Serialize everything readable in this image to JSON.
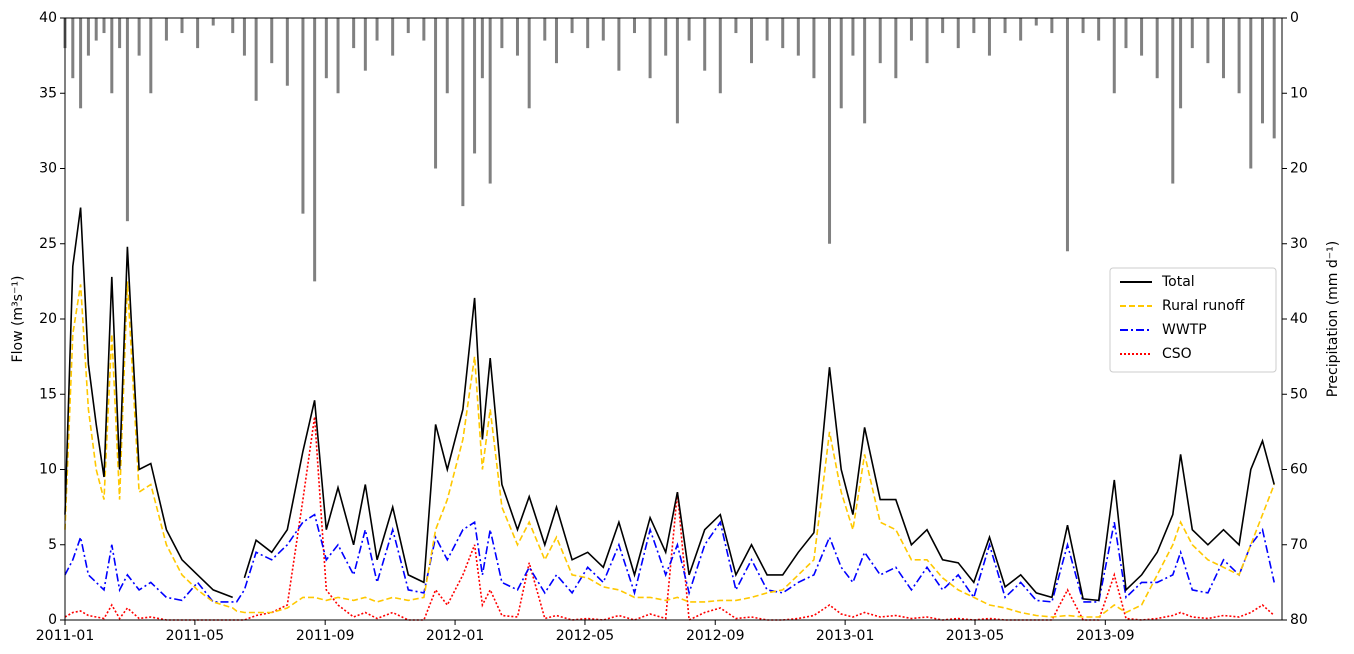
{
  "chart_data": {
    "type": "line",
    "ylabel": "Flow (m³s⁻¹)",
    "y2label": "Precipitation (mm d⁻¹)",
    "x": [
      2011.0,
      2011.02,
      2011.04,
      2011.06,
      2011.08,
      2011.1,
      2011.12,
      2011.14,
      2011.16,
      2011.19,
      2011.22,
      2011.26,
      2011.3,
      2011.34,
      2011.38,
      2011.43,
      2011.44,
      2011.46,
      2011.49,
      2011.53,
      2011.57,
      2011.61,
      2011.64,
      2011.67,
      2011.7,
      2011.74,
      2011.77,
      2011.8,
      2011.84,
      2011.88,
      2011.92,
      2011.95,
      2011.98,
      2012.02,
      2012.05,
      2012.07,
      2012.09,
      2012.12,
      2012.16,
      2012.19,
      2012.23,
      2012.26,
      2012.3,
      2012.34,
      2012.38,
      2012.42,
      2012.46,
      2012.5,
      2012.54,
      2012.57,
      2012.6,
      2012.64,
      2012.68,
      2012.72,
      2012.76,
      2012.8,
      2012.84,
      2012.88,
      2012.92,
      2012.96,
      2012.99,
      2013.02,
      2013.05,
      2013.09,
      2013.13,
      2013.17,
      2013.21,
      2013.25,
      2013.29,
      2013.33,
      2013.37,
      2013.41,
      2013.45,
      2013.49,
      2013.53,
      2013.57,
      2013.61,
      2013.65,
      2013.69,
      2013.72,
      2013.76,
      2013.8,
      2013.84,
      2013.86,
      2013.89,
      2013.93,
      2013.97,
      2014.01,
      2014.04,
      2014.07,
      2014.1
    ],
    "series": [
      {
        "name": "Total",
        "color": "#000000",
        "linestyle": "solid",
        "values": [
          7,
          23.5,
          27.4,
          17,
          13,
          9.5,
          22.8,
          10,
          24.8,
          10,
          10.4,
          6,
          4,
          3,
          2,
          1.5,
          null,
          2.8,
          5.3,
          4.5,
          6,
          11.2,
          14.6,
          6,
          8.8,
          5,
          9,
          4,
          7.5,
          3,
          2.5,
          13,
          10,
          14,
          21.4,
          12,
          17.4,
          9,
          6,
          8.2,
          5,
          7.5,
          4,
          4.5,
          3.5,
          6.5,
          3,
          6.8,
          4.5,
          8.5,
          3,
          6,
          7,
          3,
          5,
          3,
          3,
          4.5,
          5.8,
          16.8,
          10,
          7,
          12.8,
          8,
          8,
          5,
          6,
          4,
          3.8,
          2.5,
          5.5,
          2.2,
          3,
          1.8,
          1.5,
          6.3,
          1.4,
          1.3,
          9.3,
          2,
          3,
          4.5,
          7,
          11,
          6,
          5,
          6,
          5,
          10,
          11.9,
          9
        ]
      },
      {
        "name": "Rural runoff",
        "color": "#ffc800",
        "linestyle": "dashed",
        "values": [
          6,
          19,
          22.3,
          14,
          10,
          8,
          19,
          8,
          22.5,
          8.5,
          9,
          5,
          3,
          2,
          1.2,
          0.8,
          0.6,
          0.5,
          0.5,
          0.5,
          0.8,
          1.5,
          1.5,
          1.3,
          1.5,
          1.3,
          1.5,
          1.2,
          1.5,
          1.3,
          1.5,
          6,
          8,
          12,
          17.5,
          10,
          14,
          7.5,
          5,
          6.5,
          4,
          5.5,
          3,
          2.8,
          2.2,
          2,
          1.5,
          1.5,
          1.3,
          1.5,
          1.2,
          1.2,
          1.3,
          1.3,
          1.5,
          1.8,
          2,
          3,
          4,
          12.5,
          8.5,
          6,
          11,
          6.5,
          6,
          4,
          4,
          2.8,
          2,
          1.5,
          1,
          0.8,
          0.5,
          0.3,
          0.2,
          0.3,
          0.2,
          0.2,
          1,
          0.5,
          1,
          3,
          5,
          6.5,
          5,
          4,
          3.5,
          3,
          5,
          7,
          9
        ]
      },
      {
        "name": "WWTP",
        "color": "#0000ff",
        "linestyle": "dashdot",
        "values": [
          3,
          4,
          5.5,
          3,
          2.5,
          2,
          5,
          2,
          3,
          2,
          2.5,
          1.5,
          1.3,
          2.5,
          1.2,
          1.2,
          1.2,
          2,
          4.5,
          4,
          5,
          6.5,
          7,
          4,
          5,
          3,
          6,
          2.5,
          6,
          2,
          1.8,
          5.5,
          4,
          6,
          6.5,
          3,
          6,
          2.5,
          2,
          3.5,
          1.8,
          3,
          1.8,
          3.5,
          2.5,
          5,
          1.8,
          6,
          3,
          5,
          1.8,
          5,
          6.5,
          2,
          4,
          2,
          1.8,
          2.5,
          3,
          5.5,
          3.5,
          2.5,
          4.5,
          3,
          3.5,
          2,
          3.5,
          2,
          3,
          1.5,
          5,
          1.5,
          2.5,
          1.3,
          1.2,
          5,
          1.2,
          1.2,
          6.5,
          1.5,
          2.5,
          2.5,
          3,
          4.5,
          2,
          1.8,
          4,
          3,
          5,
          6,
          2.5
        ]
      },
      {
        "name": "CSO",
        "color": "#ff0000",
        "linestyle": "dotted",
        "values": [
          0.2,
          0.5,
          0.6,
          0.3,
          0.2,
          0.1,
          1.0,
          0.1,
          0.8,
          0.1,
          0.2,
          0,
          0,
          0,
          0,
          0,
          0,
          0,
          0.3,
          0.5,
          1,
          8,
          13.5,
          2,
          1,
          0.2,
          0.5,
          0.1,
          0.5,
          0,
          0,
          2,
          1,
          3,
          5,
          1,
          2,
          0.3,
          0.2,
          3.8,
          0.1,
          0.3,
          0,
          0.1,
          0,
          0.3,
          0,
          0.4,
          0.1,
          8.5,
          0,
          0.5,
          0.8,
          0.1,
          0.2,
          0,
          0,
          0.1,
          0.3,
          1,
          0.4,
          0.2,
          0.5,
          0.2,
          0.3,
          0.1,
          0.2,
          0,
          0.1,
          0,
          0.1,
          0,
          0,
          0,
          0,
          2,
          0,
          0,
          3,
          0.1,
          0,
          0.1,
          0.3,
          0.5,
          0.2,
          0.1,
          0.3,
          0.2,
          0.5,
          1,
          0.3
        ]
      },
      {
        "type": "bar",
        "axis": "y2",
        "color": "#808080",
        "values": [
          4,
          8,
          12,
          5,
          3,
          2,
          10,
          4,
          27,
          5,
          10,
          3,
          2,
          4,
          1,
          2,
          0,
          5,
          11,
          6,
          9,
          26,
          35,
          8,
          10,
          4,
          7,
          3,
          5,
          2,
          3,
          20,
          10,
          25,
          18,
          8,
          22,
          4,
          5,
          12,
          3,
          6,
          2,
          4,
          3,
          7,
          2,
          8,
          5,
          14,
          3,
          7,
          10,
          2,
          6,
          3,
          4,
          5,
          8,
          30,
          12,
          5,
          14,
          6,
          8,
          3,
          6,
          2,
          4,
          2,
          5,
          2,
          3,
          1,
          2,
          31,
          2,
          3,
          10,
          4,
          5,
          8,
          22,
          12,
          4,
          6,
          8,
          10,
          20,
          14,
          16
        ]
      }
    ],
    "xlim": [
      2011.0,
      2014.12
    ],
    "xticks": [
      {
        "value": 2011.0,
        "label": "2011-01"
      },
      {
        "value": 2011.333,
        "label": "2011-05"
      },
      {
        "value": 2011.667,
        "label": "2011-09"
      },
      {
        "value": 2012.0,
        "label": "2012-01"
      },
      {
        "value": 2012.333,
        "label": "2012-05"
      },
      {
        "value": 2012.667,
        "label": "2012-09"
      },
      {
        "value": 2013.0,
        "label": "2013-01"
      },
      {
        "value": 2013.333,
        "label": "2013-05"
      },
      {
        "value": 2013.667,
        "label": "2013-09"
      }
    ],
    "ylim": [
      0,
      40
    ],
    "yticks": [
      0,
      5,
      10,
      15,
      20,
      25,
      30,
      35,
      40
    ],
    "y2lim": [
      0,
      80
    ],
    "y2ticks": [
      0,
      10,
      20,
      30,
      40,
      50,
      60,
      70,
      80
    ],
    "y2_inverted": true,
    "grid": false,
    "legend": "right"
  }
}
